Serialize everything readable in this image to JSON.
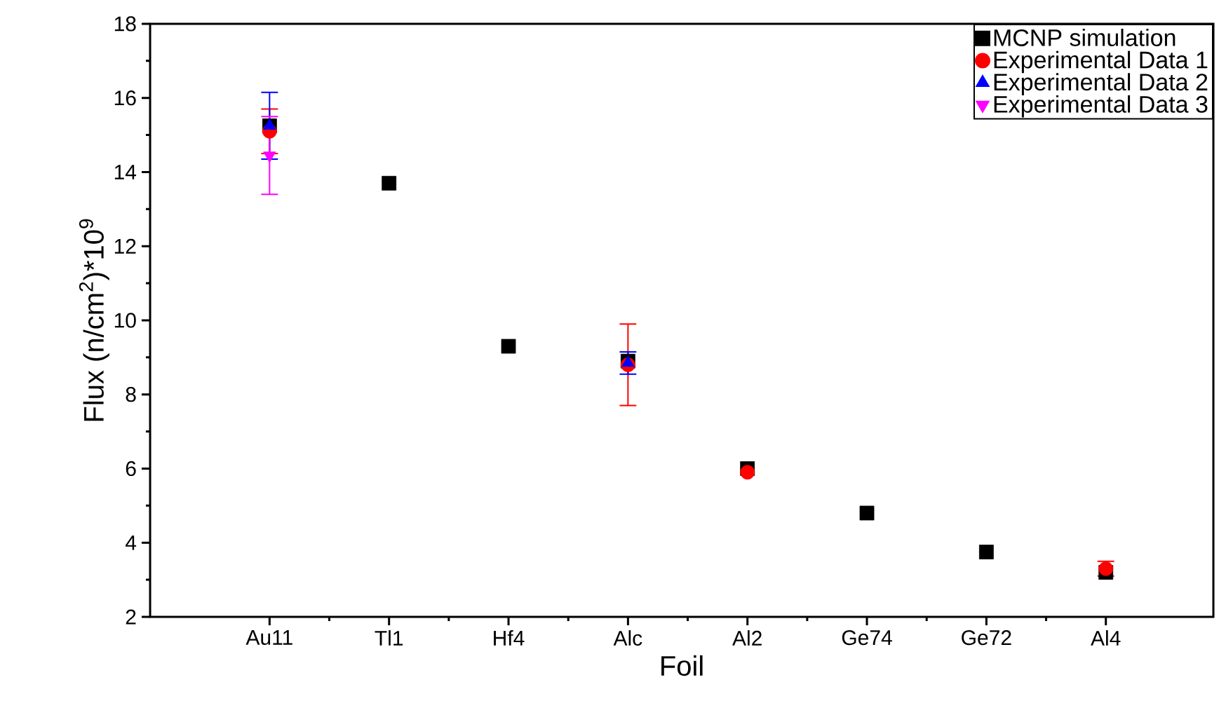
{
  "chart_data": {
    "type": "scatter",
    "xlabel": "Foil",
    "ylabel": "Flux (n/cm$^{2}$)*10$^{9}$",
    "categories": [
      "Au11",
      "Tl1",
      "Hf4",
      "Alc",
      "Al2",
      "Ge74",
      "Ge72",
      "Al4"
    ],
    "series": [
      {
        "name": "MCNP simulation",
        "color": "#000000",
        "marker": "square",
        "values": [
          15.25,
          13.7,
          9.3,
          8.9,
          6.0,
          4.8,
          3.75,
          3.2
        ]
      },
      {
        "name": "Experimental Data 1",
        "color": "#ff0000",
        "marker": "circle",
        "values": [
          15.1,
          null,
          null,
          8.8,
          5.9,
          null,
          null,
          3.3
        ],
        "errors": [
          0.6,
          null,
          null,
          1.1,
          null,
          null,
          null,
          0.2
        ]
      },
      {
        "name": "Experimental Data 2",
        "color": "#0000ff",
        "marker": "triangle",
        "values": [
          15.25,
          null,
          null,
          8.85,
          null,
          null,
          null,
          null
        ],
        "errors": [
          0.9,
          null,
          null,
          0.3,
          null,
          null,
          null,
          null
        ]
      },
      {
        "name": "Experimental Data 3",
        "color": "#ff00ff",
        "marker": "triangle-down",
        "values": [
          14.45,
          null,
          null,
          null,
          null,
          null,
          null,
          null
        ],
        "errors": [
          1.05,
          null,
          null,
          null,
          null,
          null,
          null,
          null
        ]
      }
    ],
    "ylim": [
      2,
      18
    ],
    "yticks": [
      2,
      4,
      6,
      8,
      10,
      12,
      14,
      16,
      18
    ],
    "legend": "top right",
    "grid": false
  }
}
